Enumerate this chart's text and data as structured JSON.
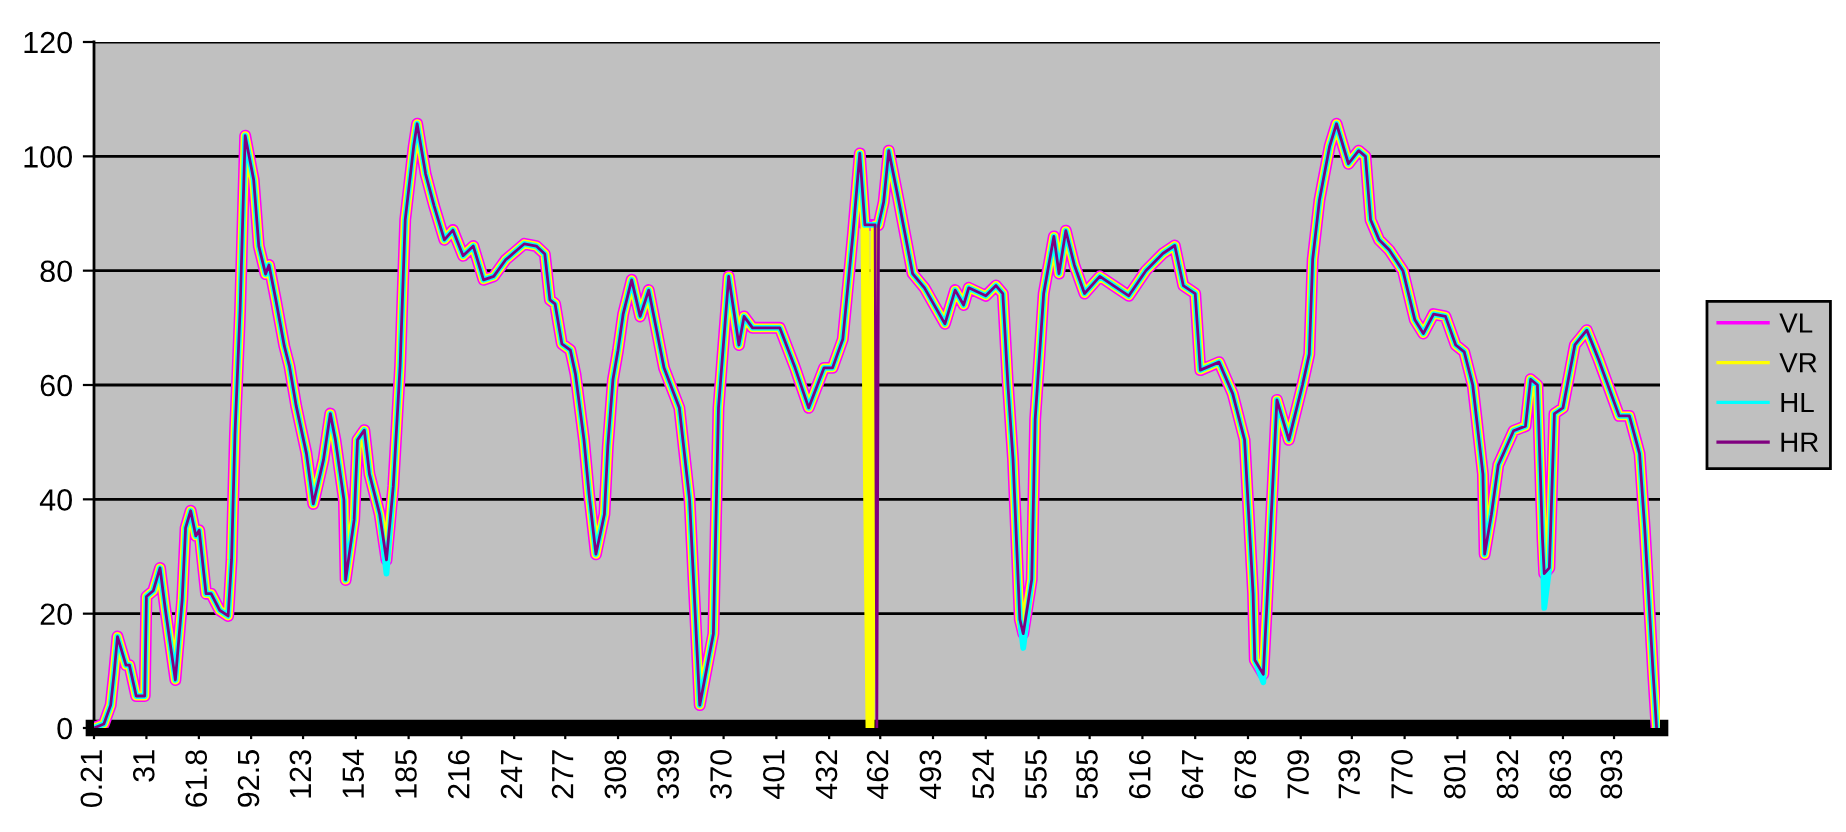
{
  "chart_data": {
    "type": "line",
    "x": [
      0.21,
      6,
      10,
      12,
      14,
      19,
      21,
      25,
      30,
      31,
      35,
      39,
      42,
      48,
      52,
      54,
      57,
      60,
      62,
      66,
      69,
      74,
      79,
      81,
      83,
      86,
      89,
      94,
      97,
      101,
      103,
      107,
      112,
      115,
      119,
      125,
      129,
      135,
      139,
      142,
      147,
      148,
      153,
      155,
      159,
      162,
      168,
      172,
      176,
      180,
      183,
      188,
      190,
      195,
      200,
      206,
      211,
      217,
      223,
      229,
      235,
      242,
      253,
      260,
      265,
      268,
      271,
      275,
      280,
      283,
      288,
      291,
      295,
      300,
      302,
      305,
      308,
      311,
      316,
      321,
      326,
      335,
      344,
      350,
      356,
      364,
      367,
      373,
      379,
      382,
      387,
      403,
      412,
      420,
      429,
      434,
      440,
      446,
      450,
      453,
      456,
      459,
      460,
      461,
      464,
      467,
      473,
      481,
      488,
      500,
      506,
      511,
      514,
      524,
      530,
      534,
      537,
      540,
      544,
      546,
      551,
      553,
      558,
      564,
      567,
      571,
      576,
      582,
      591,
      599,
      608,
      618,
      628,
      635,
      640,
      647,
      650,
      661,
      669,
      676,
      681,
      682,
      687,
      689,
      695,
      702,
      710,
      714,
      716,
      720,
      726,
      730,
      737,
      743,
      747,
      750,
      755,
      761,
      769,
      776,
      781,
      787,
      794,
      800,
      805,
      810,
      816,
      817,
      821,
      825,
      834,
      841,
      844,
      848,
      851,
      852,
      855,
      858,
      863,
      870,
      877,
      884,
      896,
      902,
      908,
      911,
      916,
      918
    ],
    "series": [
      {
        "name": "VL",
        "color": "#ff00ff",
        "values": [
          0,
          0.7,
          4,
          9.5,
          16,
          11,
          11,
          5.6,
          5.6,
          23,
          24,
          28,
          21,
          8.4,
          22.4,
          35,
          38,
          33.6,
          34.6,
          23.5,
          23.5,
          20.6,
          19.6,
          29.4,
          51.4,
          73,
          103.6,
          95.9,
          84.3,
          79.4,
          81,
          74.9,
          66.8,
          63.3,
          56.3,
          48,
          39.2,
          46.9,
          55,
          50.4,
          39.9,
          25.9,
          36.4,
          50.4,
          52.1,
          44.4,
          37.4,
          29.4,
          42.3,
          63.3,
          88.9,
          101.8,
          105.7,
          96.9,
          91.3,
          85.4,
          87.1,
          82.6,
          84.3,
          78.4,
          79,
          81.9,
          84.7,
          84.3,
          82.9,
          74.9,
          74.2,
          67.2,
          66.1,
          61.9,
          50.4,
          40.9,
          30.4,
          37.4,
          49.3,
          60.9,
          66.1,
          72.4,
          78.4,
          72,
          76.6,
          63,
          56,
          40,
          4,
          16.5,
          56,
          79,
          67,
          72,
          70,
          70,
          63,
          56,
          63,
          63,
          68,
          86.5,
          100.5,
          88,
          88,
          88,
          88,
          88,
          92,
          101,
          92,
          79.5,
          77,
          70.7,
          76.6,
          74,
          77,
          75.6,
          77.4,
          76,
          60,
          47,
          19,
          16.5,
          26,
          54,
          76,
          86,
          79.5,
          87,
          81,
          76,
          79,
          77.4,
          75.6,
          80,
          83,
          84.4,
          77.4,
          76,
          62.6,
          64,
          58.5,
          50.4,
          23.5,
          11.9,
          9.4,
          21,
          57.4,
          50.4,
          60,
          65.4,
          82,
          92.4,
          101.8,
          105.7,
          98.7,
          101,
          100,
          88.9,
          85.4,
          83.6,
          80,
          71.4,
          69,
          72.4,
          72,
          67,
          65.8,
          60,
          44.4,
          30.4,
          37.4,
          46,
          52,
          52.8,
          61,
          60,
          33,
          27,
          28,
          55,
          56,
          67,
          69.6,
          64.4,
          54.6,
          54.6,
          48,
          35,
          9.4,
          0
        ]
      },
      {
        "name": "VR",
        "color": "#ffff00",
        "values": [
          0,
          0.7,
          4,
          9.5,
          16,
          11,
          11,
          5.6,
          5.6,
          23,
          24,
          28,
          21,
          8.4,
          22.4,
          35,
          38,
          33.6,
          34.6,
          23.5,
          23.5,
          20.6,
          19.6,
          29.4,
          51.4,
          73,
          103.6,
          95.9,
          84.3,
          79.4,
          81,
          74.9,
          66.8,
          63.3,
          56.3,
          48,
          39.2,
          46.9,
          55,
          50.4,
          39.9,
          25.9,
          36.4,
          50.4,
          52.1,
          44.4,
          37.4,
          29.4,
          42.3,
          63.3,
          88.9,
          101.8,
          105.7,
          96.9,
          91.3,
          85.4,
          87.1,
          82.6,
          84.3,
          78.4,
          79,
          81.9,
          84.7,
          84.3,
          82.9,
          74.9,
          74.2,
          67.2,
          66.1,
          61.9,
          50.4,
          40.9,
          30.4,
          37.4,
          49.3,
          60.9,
          66.1,
          72.4,
          78.4,
          72,
          76.6,
          63,
          56,
          40,
          4,
          16.5,
          56,
          79,
          67,
          72,
          70,
          70,
          63,
          56,
          63,
          63,
          68,
          86.5,
          100.5,
          88,
          0,
          88,
          88,
          88,
          92,
          101,
          92,
          79.5,
          77,
          70.7,
          76.6,
          74,
          77,
          75.6,
          77.4,
          76,
          60,
          47,
          19,
          16.5,
          26,
          54,
          76,
          86,
          79.5,
          87,
          81,
          76,
          79,
          77.4,
          75.6,
          80,
          83,
          84.4,
          77.4,
          76,
          62.6,
          64,
          58.5,
          50.4,
          23.5,
          11.9,
          9.4,
          21,
          57.4,
          50.4,
          60,
          65.4,
          82,
          92.4,
          101.8,
          105.7,
          98.7,
          101,
          100,
          88.9,
          85.4,
          83.6,
          80,
          71.4,
          69,
          72.4,
          72,
          67,
          65.8,
          60,
          44.4,
          30.4,
          37.4,
          46,
          52,
          52.8,
          61,
          60,
          33,
          27,
          28,
          55,
          56,
          67,
          69.6,
          64.4,
          54.6,
          54.6,
          48,
          35,
          9.4,
          0
        ]
      },
      {
        "name": "HL",
        "color": "#00ffff",
        "values": [
          0,
          0.7,
          4,
          9.5,
          16,
          11,
          11,
          5.6,
          5.6,
          23,
          24,
          28,
          21,
          8.4,
          22.4,
          35,
          38,
          33.6,
          34.6,
          23.5,
          23.5,
          20.6,
          19.6,
          29.4,
          51.4,
          73,
          103.6,
          95.9,
          84.3,
          79.4,
          81,
          74.9,
          66.8,
          63.3,
          56.3,
          48,
          39.2,
          46.9,
          55,
          50.4,
          39.9,
          25.9,
          36.4,
          50.4,
          52.1,
          44.4,
          37.4,
          27,
          42.3,
          63.3,
          88.9,
          101.8,
          105.7,
          96.9,
          91.3,
          85.4,
          87.1,
          82.6,
          84.3,
          78.4,
          79,
          81.9,
          84.7,
          84.3,
          82.9,
          74.9,
          74.2,
          67.2,
          66.1,
          61.9,
          50.4,
          40.9,
          30.4,
          37.4,
          49.3,
          60.9,
          66.1,
          72.4,
          78.4,
          72,
          76.6,
          63,
          56,
          40,
          4,
          16.5,
          56,
          79,
          67,
          72,
          70,
          70,
          63,
          56,
          63,
          63,
          68,
          86.5,
          100.5,
          88,
          88,
          88,
          88,
          88,
          92,
          101,
          92,
          79.5,
          77,
          70.7,
          76.6,
          74,
          77,
          75.6,
          77.4,
          76,
          60,
          47,
          19,
          14,
          26,
          54,
          76,
          86,
          79.5,
          87,
          81,
          76,
          79,
          77.4,
          75.6,
          80,
          83,
          84.4,
          77.4,
          76,
          62.6,
          64,
          58.5,
          50.4,
          23.5,
          11.9,
          8,
          21,
          57.4,
          50.4,
          60,
          65.4,
          82,
          92.4,
          101.8,
          105.7,
          98.7,
          101,
          100,
          88.9,
          85.4,
          83.6,
          80,
          71.4,
          69,
          72.4,
          72,
          67,
          65.8,
          60,
          44.4,
          30.4,
          37.4,
          46,
          52,
          52.8,
          61,
          60,
          33,
          21,
          28,
          55,
          56,
          67,
          69.6,
          64.4,
          54.6,
          54.6,
          48,
          35,
          9.4,
          0
        ]
      },
      {
        "name": "HR",
        "color": "#800080",
        "values": [
          0,
          0.7,
          4,
          9.5,
          16,
          11,
          11,
          5.6,
          5.6,
          23,
          24,
          28,
          21,
          8.4,
          22.4,
          35,
          38,
          33.6,
          34.6,
          23.5,
          23.5,
          20.6,
          19.6,
          29.4,
          51.4,
          73,
          103.6,
          95.9,
          84.3,
          79.4,
          81,
          74.9,
          66.8,
          63.3,
          56.3,
          48,
          39.2,
          46.9,
          55,
          50.4,
          39.9,
          25.9,
          36.4,
          50.4,
          52.1,
          44.4,
          37.4,
          29.4,
          42.3,
          63.3,
          88.9,
          101.8,
          105.7,
          96.9,
          91.3,
          85.4,
          87.1,
          82.6,
          84.3,
          78.4,
          79,
          81.9,
          84.7,
          84.3,
          82.9,
          74.9,
          74.2,
          67.2,
          66.1,
          61.9,
          50.4,
          40.9,
          30.4,
          37.4,
          49.3,
          60.9,
          66.1,
          72.4,
          78.4,
          72,
          76.6,
          63,
          56,
          40,
          4,
          16.5,
          56,
          79,
          67,
          72,
          70,
          70,
          63,
          56,
          63,
          63,
          68,
          86.5,
          100.5,
          88,
          88,
          88,
          0,
          88,
          92,
          101,
          92,
          79.5,
          77,
          70.7,
          76.6,
          74,
          77,
          75.6,
          77.4,
          76,
          60,
          47,
          19,
          16.5,
          26,
          54,
          76,
          86,
          79.5,
          87,
          81,
          76,
          79,
          77.4,
          75.6,
          80,
          83,
          84.4,
          77.4,
          76,
          62.6,
          64,
          58.5,
          50.4,
          23.5,
          11.9,
          9.4,
          21,
          57.4,
          50.4,
          60,
          65.4,
          82,
          92.4,
          101.8,
          105.7,
          98.7,
          101,
          100,
          88.9,
          85.4,
          83.6,
          80,
          71.4,
          69,
          72.4,
          72,
          67,
          65.8,
          60,
          44.4,
          30.4,
          37.4,
          46,
          52,
          52.8,
          61,
          60,
          33,
          27,
          28,
          55,
          56,
          67,
          69.6,
          64.4,
          54.6,
          54.6,
          48,
          35,
          9.4,
          0
        ]
      }
    ],
    "xlim": [
      0.21,
      920
    ],
    "xticks": [
      0.21,
      31,
      61.8,
      92.5,
      123,
      154,
      185,
      216,
      247,
      277,
      308,
      339,
      370,
      401,
      432,
      462,
      493,
      524,
      555,
      585,
      616,
      647,
      678,
      709,
      739,
      770,
      801,
      832,
      863,
      893
    ],
    "ylim": [
      0,
      120
    ],
    "yticks": [
      0,
      20,
      40,
      60,
      80,
      100,
      120
    ],
    "grid": "y",
    "legend": "right",
    "marker": "none",
    "line_style": "solid"
  }
}
